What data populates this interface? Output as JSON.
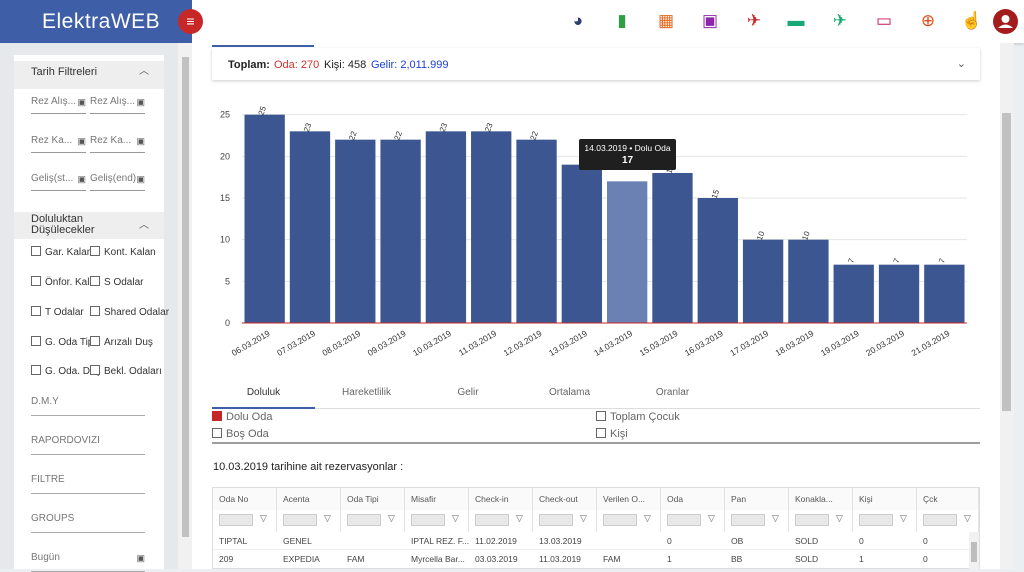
{
  "app": {
    "brand": "ElektraWEB"
  },
  "topbar": {
    "icons": [
      {
        "name": "pie-chart-icon",
        "color": "#2c3e70",
        "glyph": "◕"
      },
      {
        "name": "bar-chart-icon",
        "color": "#2e9e43",
        "glyph": "▮"
      },
      {
        "name": "grid-icon",
        "color": "#e3671b",
        "glyph": "▦"
      },
      {
        "name": "calendar-icon",
        "color": "#8e24aa",
        "glyph": "▣"
      },
      {
        "name": "departure-icon",
        "color": "#c62828",
        "glyph": "✈"
      },
      {
        "name": "bed-icon",
        "color": "#19a974",
        "glyph": "▬"
      },
      {
        "name": "arrival-icon",
        "color": "#19a974",
        "glyph": "✈"
      },
      {
        "name": "card-icon",
        "color": "#c2185b",
        "glyph": "▭"
      },
      {
        "name": "cart-icon",
        "color": "#e64a19",
        "glyph": "⊕"
      },
      {
        "name": "touch-icon",
        "color": "#f08a5d",
        "glyph": "☝"
      }
    ]
  },
  "sidebar": {
    "date_filters_title": "Tarih Filtreleri",
    "date_fields": [
      "Rez Alış...",
      "Rez Alış...",
      "Rez Ka...",
      "Rez Ka...",
      "Geliş(st...",
      "Geliş(end)"
    ],
    "occupancy_title_1": "Doluluktan",
    "occupancy_title_2": "Düşülecekler",
    "checkboxes": [
      "Gar. Kalan",
      "Kont. Kalan",
      "Önfor. Kalan",
      "S Odalar",
      "T Odalar",
      "Shared Odalar",
      "G. Oda Tip",
      "Arızalı Duş",
      "G. Oda. Duş",
      "Bekl. Odaları"
    ],
    "text_fields": [
      "D.M.Y",
      "RAPORDOVIZI",
      "FILTRE",
      "GROUPS",
      "Bugün"
    ]
  },
  "summary": {
    "label": "Toplam:",
    "room": "Oda: 270",
    "person": "Kişi: 458",
    "income": "Gelir: 2,011.999",
    "colors": {
      "room": "#d32f2f",
      "income": "#1e40d6"
    }
  },
  "chart_data": {
    "type": "bar",
    "categories": [
      "06.03.2019",
      "07.03.2019",
      "08.03.2019",
      "09.03.2019",
      "10.03.2019",
      "11.03.2019",
      "12.03.2019",
      "13.03.2019",
      "14.03.2019",
      "15.03.2019",
      "16.03.2019",
      "17.03.2019",
      "18.03.2019",
      "19.03.2019",
      "20.03.2019",
      "21.03.2019"
    ],
    "values": [
      25,
      23,
      22,
      22,
      23,
      23,
      22,
      19,
      17,
      18,
      15,
      10,
      10,
      7,
      7,
      7
    ],
    "data_labels": [
      "25",
      "23",
      "22",
      "22",
      "23",
      "23",
      "22",
      "",
      "",
      "18",
      "15",
      "10",
      "10",
      "7",
      "7",
      "7"
    ],
    "series_name": "Dolu Oda",
    "ylim": [
      0,
      27
    ],
    "yticks": [
      "0",
      "5",
      "10",
      "15",
      "20",
      "25"
    ],
    "bar_color": "#3c5691",
    "highlight_color": "#6b81b3",
    "highlight_index": 8,
    "grid": true,
    "tooltip": {
      "title": "14.03.2019 • Dolu Oda",
      "value": "17"
    }
  },
  "tabs": [
    "Doluluk",
    "Hareketlilik",
    "Gelir",
    "Ortalama",
    "Oranlar"
  ],
  "legend": {
    "dolu_oda": "Dolu Oda",
    "bos_oda": "Boş Oda",
    "toplam_cocuk": "Toplam Çocuk",
    "kisi": "Kişi"
  },
  "reservations": {
    "title": "10.03.2019 tarihine ait rezervasyonlar :",
    "columns": [
      "Oda No",
      "Acenta",
      "Oda Tipi",
      "Misafir",
      "Check-in",
      "Check-out",
      "Verilen O...",
      "Oda",
      "Pan",
      "Konakla...",
      "Kişi",
      "Çck"
    ],
    "rows": [
      [
        "TIPTAL",
        "GENEL",
        "",
        "IPTAL REZ. F...",
        "11.02.2019",
        "13.03.2019",
        "",
        "0",
        "OB",
        "SOLD",
        "0",
        "0"
      ],
      [
        "209",
        "EXPEDIA",
        "FAM",
        "Myrcella Bar...",
        "03.03.2019",
        "11.03.2019",
        "FAM",
        "1",
        "BB",
        "SOLD",
        "1",
        "0"
      ]
    ]
  }
}
